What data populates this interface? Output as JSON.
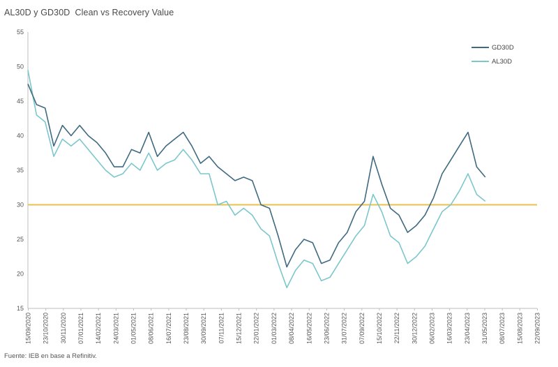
{
  "chart_data": {
    "type": "line",
    "title": "AL30D y GD30D  Clean vs Recovery Value",
    "source": "Fuente: IEB en base a Refinitiv.",
    "xlabel": "",
    "ylabel": "",
    "ylim": [
      15,
      55
    ],
    "yticks": [
      15,
      20,
      25,
      30,
      35,
      40,
      45,
      50,
      55
    ],
    "grid": false,
    "legend_position": "top-right",
    "x_tick_labels": [
      "15/09/2020",
      "23/10/2020",
      "30/11/2020",
      "07/01/2021",
      "14/02/2021",
      "24/03/2021",
      "01/05/2021",
      "08/06/2021",
      "16/07/2021",
      "23/08/2021",
      "30/09/2021",
      "07/11/2021",
      "15/12/2021",
      "22/01/2022",
      "01/03/2022",
      "08/04/2022",
      "16/05/2022",
      "23/06/2022",
      "31/07/2022",
      "07/09/2022",
      "15/10/2022",
      "22/11/2022",
      "30/12/2022",
      "06/02/2023",
      "16/03/2023",
      "23/04/2023",
      "31/05/2023",
      "08/07/2023",
      "15/08/2023",
      "22/09/2023"
    ],
    "reference_line": {
      "value": 30,
      "color": "#e8c24a"
    },
    "x": [
      0,
      0.5,
      1,
      1.5,
      2,
      2.5,
      3,
      3.5,
      4,
      4.5,
      5,
      5.5,
      6,
      6.5,
      7,
      7.5,
      8,
      8.5,
      9,
      9.5,
      10,
      10.5,
      11,
      11.5,
      12,
      12.5,
      13,
      13.5,
      14,
      14.5,
      15,
      15.5,
      16,
      16.5,
      17,
      17.5,
      18,
      18.5,
      19,
      19.5,
      20,
      20.5,
      21,
      21.5,
      22,
      22.5,
      23,
      23.5,
      24,
      24.5,
      25,
      25.5,
      26,
      26.5,
      27,
      27.5,
      28,
      28.5,
      29,
      29.5
    ],
    "series": [
      {
        "name": "GD30D",
        "color": "#3f6a80",
        "values": [
          47.5,
          44.5,
          44.0,
          38.5,
          41.5,
          40.0,
          41.5,
          40.0,
          39.0,
          37.5,
          35.5,
          35.5,
          38.0,
          37.5,
          40.5,
          37.0,
          38.5,
          39.5,
          40.5,
          38.5,
          36.0,
          37.0,
          35.5,
          34.5,
          33.5,
          34.0,
          33.5,
          30.0,
          29.5,
          25.5,
          21.0,
          23.5,
          25.0,
          24.5,
          21.5,
          22.0,
          24.5,
          26.0,
          29.0,
          30.5,
          37.0,
          33.0,
          29.5,
          28.5,
          26.0,
          27.0,
          28.5,
          31.0,
          34.5,
          36.5,
          38.5,
          40.5,
          35.5,
          34.0,
          null,
          null,
          null,
          null,
          null,
          null
        ]
      },
      {
        "name": "AL30D",
        "color": "#7cc7cc",
        "values": [
          49.5,
          43.0,
          42.0,
          37.0,
          39.5,
          38.5,
          39.5,
          38.0,
          36.5,
          35.0,
          34.0,
          34.5,
          36.0,
          35.0,
          37.5,
          35.0,
          36.0,
          36.5,
          38.0,
          36.5,
          34.5,
          34.5,
          30.0,
          30.5,
          28.5,
          29.5,
          28.5,
          26.5,
          25.5,
          21.5,
          18.0,
          20.5,
          22.0,
          21.5,
          19.0,
          19.5,
          21.5,
          23.5,
          25.5,
          27.0,
          31.5,
          29.0,
          25.5,
          24.5,
          21.5,
          22.5,
          24.0,
          26.5,
          29.0,
          30.0,
          32.0,
          34.5,
          31.5,
          30.5,
          null,
          null,
          null,
          null,
          null,
          null
        ]
      }
    ]
  }
}
